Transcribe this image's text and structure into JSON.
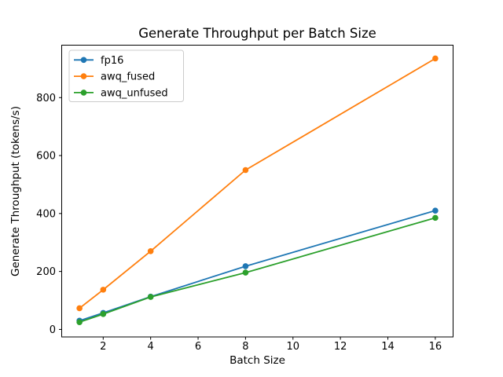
{
  "chart_data": {
    "type": "line",
    "title": "Generate Throughput per Batch Size",
    "xlabel": "Batch Size",
    "ylabel": "Generate Throughput (tokens/s)",
    "x": [
      1,
      2,
      4,
      8,
      16
    ],
    "series": [
      {
        "name": "fp16",
        "color": "#1f77b4",
        "values": [
          30,
          57,
          113,
          218,
          410
        ]
      },
      {
        "name": "awq_fused",
        "color": "#ff7f0e",
        "values": [
          73,
          137,
          270,
          550,
          935
        ]
      },
      {
        "name": "awq_unfused",
        "color": "#2ca02c",
        "values": [
          25,
          53,
          112,
          196,
          385
        ]
      }
    ],
    "xticks": [
      2,
      4,
      6,
      8,
      10,
      12,
      14,
      16
    ],
    "yticks": [
      0,
      200,
      400,
      600,
      800
    ],
    "xlim": [
      0.25,
      16.75
    ],
    "ylim": [
      -26,
      981
    ],
    "grid": false,
    "legend": {
      "position": "upper-left",
      "entries": [
        "fp16",
        "awq_fused",
        "awq_unfused"
      ]
    },
    "marker": "circle",
    "spine_color": "#000000",
    "background_color": "#ffffff",
    "legend_border_color": "#cccccc"
  }
}
